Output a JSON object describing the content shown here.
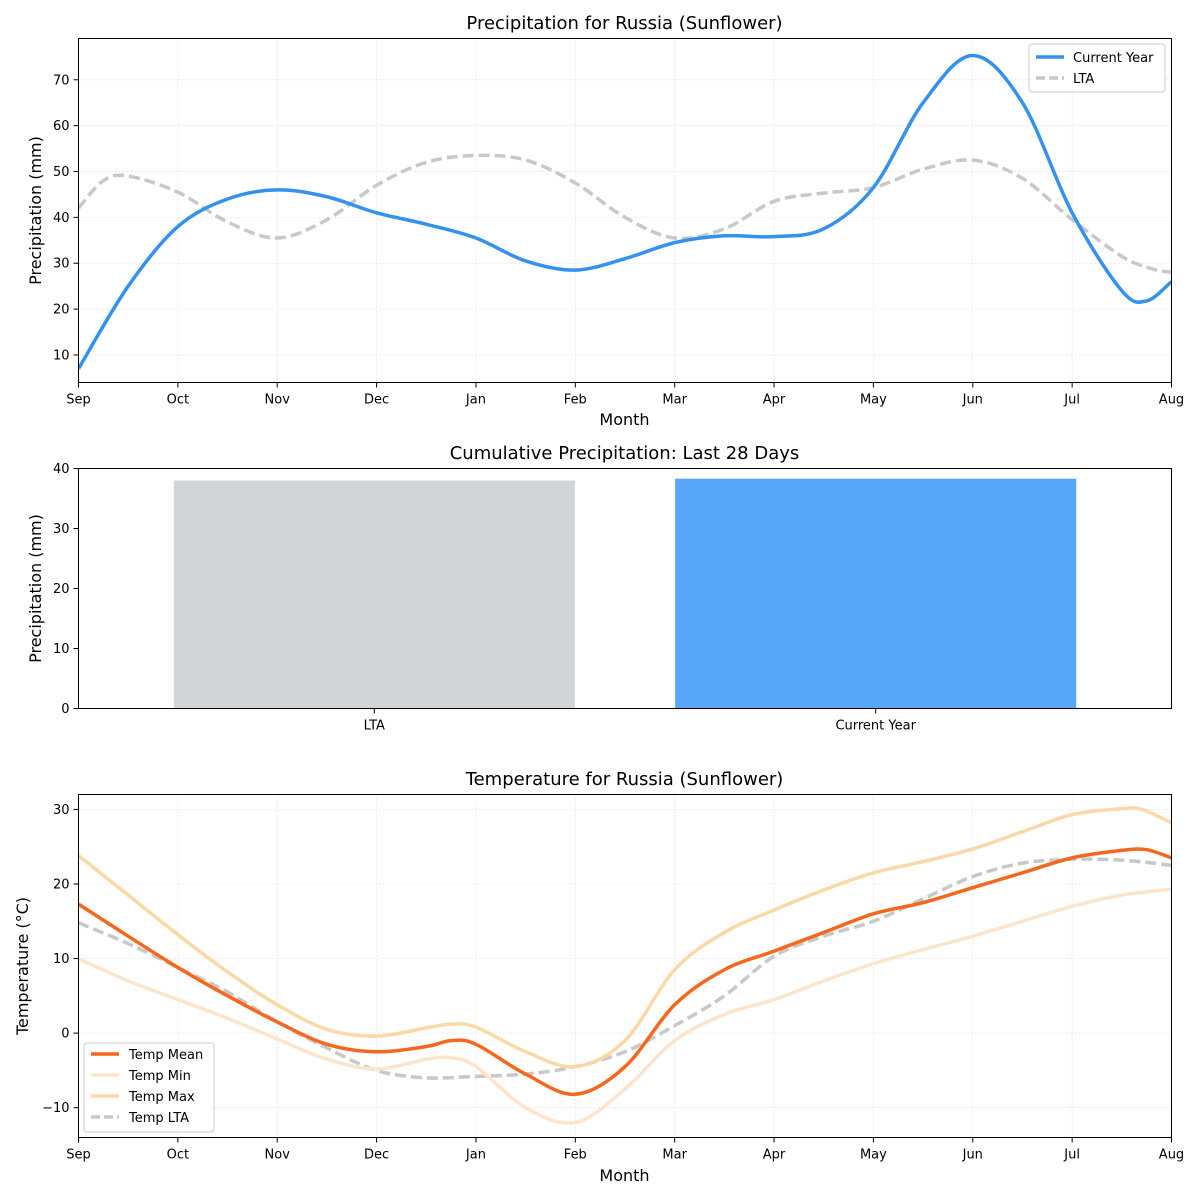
{
  "chart_data": [
    {
      "type": "line",
      "title": "Precipitation for Russia (Sunflower)",
      "xlabel": "Month",
      "ylabel": "Precipitation (mm)",
      "categories": [
        "Sep",
        "Oct",
        "Nov",
        "Dec",
        "Jan",
        "Feb",
        "Mar",
        "Apr",
        "May",
        "Jun",
        "Jul",
        "Aug"
      ],
      "xlim": [
        0,
        11
      ],
      "ylim": [
        4,
        79
      ],
      "yticks": [
        10,
        20,
        30,
        40,
        50,
        60,
        70
      ],
      "grid": true,
      "legend": "top-right",
      "series": [
        {
          "name": "Current Year",
          "color": "#3391f0",
          "style": "solid",
          "x": [
            0,
            0.5,
            1,
            1.5,
            2,
            2.5,
            3,
            3.5,
            4,
            4.5,
            5,
            5.5,
            6,
            6.5,
            7,
            7.5,
            8,
            8.5,
            9,
            9.5,
            10,
            10.5,
            10.75,
            11
          ],
          "y": [
            7,
            25,
            38,
            44,
            46,
            44.5,
            41,
            38.5,
            35.5,
            30.5,
            28.5,
            31,
            34.5,
            36,
            35.8,
            37.5,
            46.5,
            65,
            75.3,
            65,
            41,
            24,
            21.8,
            26
          ]
        },
        {
          "name": "LTA",
          "color": "#c8c8c8",
          "style": "dashed",
          "x": [
            0,
            0.25,
            0.5,
            1,
            1.5,
            2,
            2.5,
            3,
            3.5,
            4,
            4.5,
            5,
            5.5,
            6,
            6.5,
            7,
            7.5,
            8,
            8.5,
            9,
            9.5,
            10,
            10.5,
            10.8,
            11
          ],
          "y": [
            42,
            48,
            49,
            45.5,
            39,
            35.5,
            39.5,
            47,
            52,
            53.5,
            52.5,
            47.5,
            40,
            35.5,
            37.5,
            43.5,
            45.3,
            46.5,
            50.5,
            52.5,
            48.5,
            39.5,
            31.5,
            28.8,
            28
          ]
        }
      ]
    },
    {
      "type": "bar",
      "title": "Cumulative Precipitation: Last 28 Days",
      "xlabel": "",
      "ylabel": "Precipitation (mm)",
      "categories": [
        "LTA",
        "Current Year"
      ],
      "values": [
        38.0,
        38.3
      ],
      "colors": [
        "#d1d5d8",
        "#58a6fa"
      ],
      "ylim": [
        0,
        40
      ],
      "yticks": [
        0,
        10,
        20,
        30,
        40
      ]
    },
    {
      "type": "line",
      "title": "Temperature for Russia (Sunflower)",
      "xlabel": "Month",
      "ylabel": "Temperature (°C)",
      "categories": [
        "Sep",
        "Oct",
        "Nov",
        "Dec",
        "Jan",
        "Feb",
        "Mar",
        "Apr",
        "May",
        "Jun",
        "Jul",
        "Aug"
      ],
      "xlim": [
        0,
        11
      ],
      "ylim": [
        -14,
        32
      ],
      "yticks": [
        -10,
        0,
        10,
        20,
        30
      ],
      "grid": true,
      "legend": "bottom-left",
      "series": [
        {
          "name": "Temp Mean",
          "color": "#f5671c",
          "style": "solid",
          "x": [
            0,
            0.5,
            1,
            1.5,
            2,
            2.5,
            3,
            3.5,
            3.75,
            4,
            4.5,
            5,
            5.5,
            6,
            6.5,
            7,
            7.5,
            8,
            8.5,
            9,
            9.5,
            10,
            10.5,
            10.75,
            11
          ],
          "y": [
            17.3,
            13,
            8.8,
            5,
            1.5,
            -1.5,
            -2.5,
            -1.8,
            -1,
            -1.5,
            -5.5,
            -8.2,
            -4.5,
            3.8,
            8.5,
            11,
            13.5,
            16,
            17.5,
            19.5,
            21.5,
            23.5,
            24.5,
            24.6,
            23.5
          ]
        },
        {
          "name": "Temp Min",
          "color": "#fde4cd",
          "style": "solid",
          "x": [
            0,
            0.5,
            1,
            1.5,
            2,
            2.5,
            3,
            3.5,
            3.75,
            4,
            4.5,
            5,
            5.5,
            6,
            6.5,
            7,
            7.5,
            8,
            8.5,
            9,
            9.5,
            10,
            10.5,
            11
          ],
          "y": [
            10,
            7,
            4.5,
            2,
            -0.8,
            -3.5,
            -4.8,
            -3.5,
            -3.3,
            -4.5,
            -10,
            -12,
            -7.5,
            -1,
            2.5,
            4.5,
            7,
            9.3,
            11.2,
            13,
            15,
            17,
            18.5,
            19.3
          ]
        },
        {
          "name": "Temp Max",
          "color": "#fad9a6",
          "style": "solid",
          "x": [
            0,
            0.5,
            1,
            1.5,
            2,
            2.5,
            3,
            3.5,
            3.75,
            4,
            4.5,
            5,
            5.5,
            6,
            6.5,
            7,
            7.5,
            8,
            8.5,
            9,
            9.5,
            10,
            10.5,
            10.7,
            11
          ],
          "y": [
            23.8,
            18.5,
            13.2,
            8.2,
            3.8,
            0.5,
            -0.4,
            0.7,
            1.2,
            0.8,
            -2.5,
            -4.5,
            -1,
            8.5,
            13.5,
            16.5,
            19.2,
            21.5,
            23,
            24.7,
            27,
            29.3,
            30.1,
            30,
            28.2
          ]
        },
        {
          "name": "Temp LTA",
          "color": "#c8c8c8",
          "style": "dashed",
          "x": [
            0,
            0.5,
            1,
            1.5,
            2,
            2.5,
            3,
            3.5,
            4,
            4.5,
            5,
            5.5,
            6,
            6.5,
            7,
            7.5,
            8,
            8.5,
            9,
            9.5,
            10,
            10.5,
            11
          ],
          "y": [
            14.8,
            12,
            8.8,
            5.5,
            1.5,
            -2,
            -5,
            -6,
            -5.8,
            -5.5,
            -4.5,
            -2.5,
            1,
            5,
            10.3,
            13,
            15,
            18,
            21,
            22.8,
            23.3,
            23.2,
            22.5
          ]
        }
      ]
    }
  ]
}
